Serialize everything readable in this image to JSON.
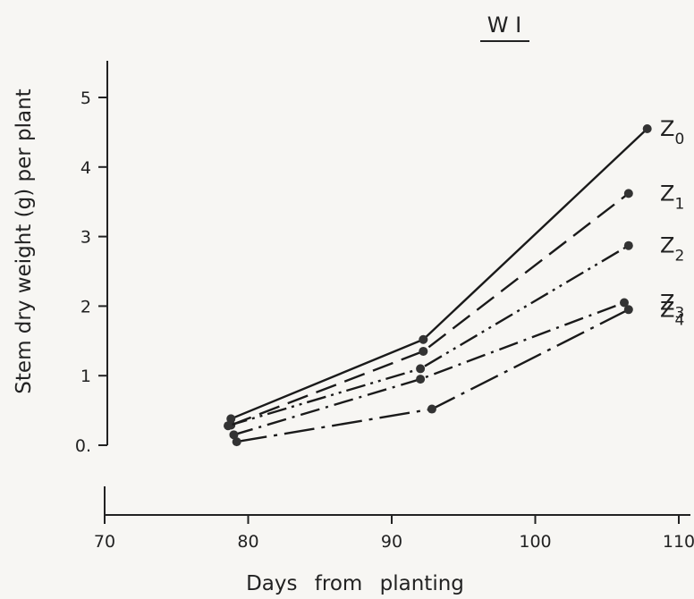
{
  "chart_data": {
    "type": "line",
    "title": "W I",
    "xlabel": "Days from planting",
    "ylabel": "Stem dry weight (g) per plant",
    "xlim": [
      70,
      112
    ],
    "ylim": [
      0,
      5.5
    ],
    "x_ticks": [
      70,
      80,
      90,
      100,
      110
    ],
    "y_ticks": [
      0,
      1,
      2,
      3,
      4,
      5
    ],
    "x_tick_labels": [
      "70",
      "80",
      "90",
      "100",
      "110"
    ],
    "y_tick_labels": [
      "0.",
      "1",
      "2",
      "3",
      "4",
      "5"
    ],
    "grid": false,
    "legend": "right (labels at line ends)",
    "series": [
      {
        "name": "Z",
        "subscript": "0",
        "style": "solid",
        "x": [
          78.8,
          92.2,
          107.8
        ],
        "y": [
          0.38,
          1.52,
          4.55
        ]
      },
      {
        "name": "Z",
        "subscript": "1",
        "style": "dash",
        "x": [
          78.8,
          92.2,
          106.5
        ],
        "y": [
          0.29,
          1.35,
          3.62
        ]
      },
      {
        "name": "Z",
        "subscript": "2",
        "style": "dash-dot-dot",
        "x": [
          78.6,
          92.0,
          106.5
        ],
        "y": [
          0.28,
          1.1,
          2.87
        ]
      },
      {
        "name": "Z",
        "subscript": "3",
        "style": "dash-dot",
        "x": [
          79.0,
          92.0,
          106.2
        ],
        "y": [
          0.15,
          0.95,
          2.05
        ]
      },
      {
        "name": "Z",
        "subscript": "4",
        "style": "long-dash-dot",
        "x": [
          79.2,
          92.8,
          106.5
        ],
        "y": [
          0.05,
          0.52,
          1.95
        ]
      }
    ]
  }
}
